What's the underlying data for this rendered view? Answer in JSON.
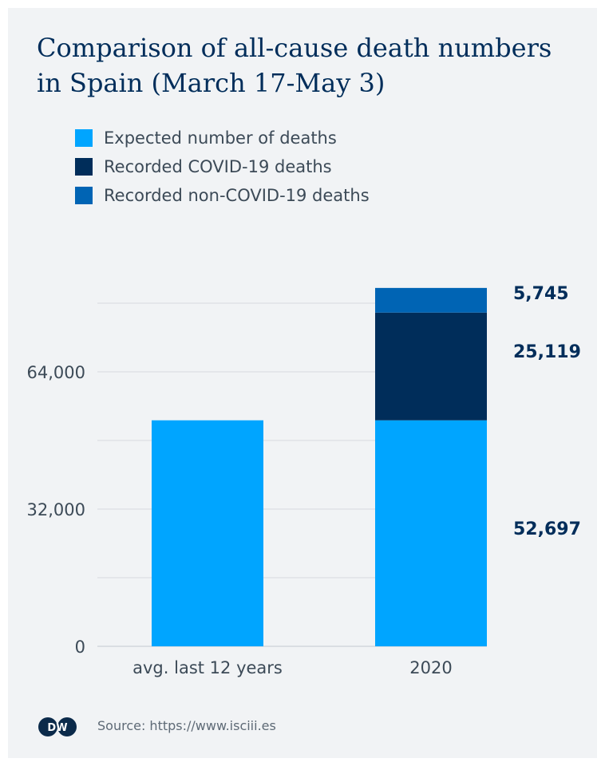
{
  "title": "Comparison of all-cause death numbers in Spain (March 17-May 3)",
  "legend": [
    {
      "label": "Expected number of deaths",
      "color": "#00a5ff"
    },
    {
      "label": "Recorded COVID-19 deaths",
      "color": "#002d5a"
    },
    {
      "label": "Recorded non-COVID-19 deaths",
      "color": "#0064b4"
    }
  ],
  "source": "Source: https://www.isciii.es",
  "logo_text": "DW",
  "chart_data": {
    "type": "bar",
    "stacked": true,
    "categories": [
      "avg. last 12 years",
      "2020"
    ],
    "series": [
      {
        "name": "Expected number of deaths",
        "color": "#00a5ff",
        "values": [
          52697,
          52697
        ]
      },
      {
        "name": "Recorded COVID-19 deaths",
        "color": "#002d5a",
        "values": [
          0,
          25119
        ]
      },
      {
        "name": "Recorded non-COVID-19 deaths",
        "color": "#0064b4",
        "values": [
          0,
          5745
        ]
      }
    ],
    "data_labels": {
      "category": "2020",
      "values": [
        "52,697",
        "25,119",
        "5,745"
      ]
    },
    "y_ticks": [
      0,
      32000,
      64000
    ],
    "y_tick_labels": [
      "0",
      "32,000",
      "64,000"
    ],
    "ylim": [
      0,
      80000
    ],
    "grid": true
  }
}
